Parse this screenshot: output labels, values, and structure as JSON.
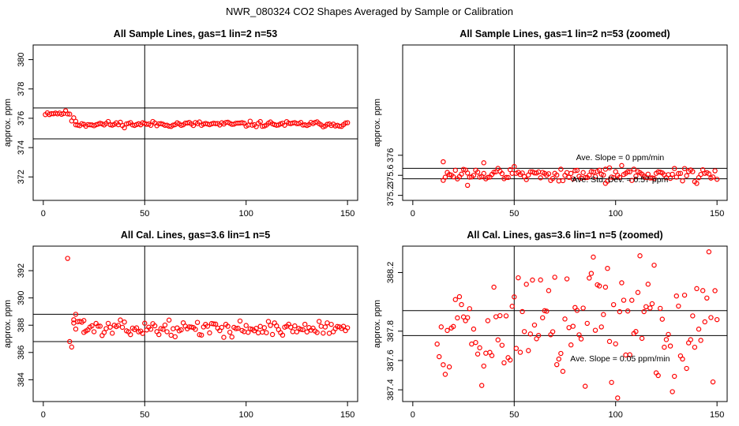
{
  "figure": {
    "title": "NWR_080324  CO2 Shapes Averaged by Sample or Calibration"
  },
  "chart_data": [
    {
      "type": "scatter",
      "title": "All Sample Lines, gas=1 lin=2 n=53",
      "xlabel": "",
      "ylabel": "approx. ppm",
      "xlim": [
        -5,
        155
      ],
      "ylim": [
        370.4,
        381.0
      ],
      "xticks": [
        0,
        50,
        100,
        150
      ],
      "yticks": [
        372,
        374,
        376,
        378,
        380
      ],
      "hlines": [
        376.7,
        374.6
      ],
      "vline": 50,
      "annotations": [],
      "series": [
        {
          "marker": "open-circle",
          "color": "#ff0000",
          "seed": 11,
          "segments": [
            {
              "from": 1,
              "to": 13,
              "center": 376.35,
              "noise": 0.08
            },
            {
              "from": 14,
              "to": 16,
              "center": 375.85,
              "noise": 0.1
            },
            {
              "from": 16,
              "to": 150,
              "center": 375.6,
              "noise": 0.09
            }
          ]
        }
      ]
    },
    {
      "type": "scatter",
      "title": "All Sample Lines, gas=1 lin=2 n=53 (zoomed)",
      "xlabel": "",
      "ylabel": "approx. ppm",
      "xlim": [
        -5,
        155
      ],
      "ylim": [
        375.1,
        378.2
      ],
      "xticks": [
        0,
        50,
        100,
        150
      ],
      "yticks": [
        375.2,
        375.6,
        376.0
      ],
      "hlines": [
        375.74,
        375.53
      ],
      "vline": 50,
      "annotations": [
        "Ave. Slope =  0  ppm/min",
        "Ave. Std. Dev. =  0.57  ppm"
      ],
      "series": [
        {
          "marker": "open-circle",
          "color": "#ff0000",
          "seed": 12,
          "segments": [
            {
              "from": 15,
              "to": 150,
              "center": 375.62,
              "noise": 0.07
            }
          ],
          "extra_points": [
            [
              15,
              375.87
            ],
            [
              27,
              375.4
            ],
            [
              35,
              375.85
            ],
            [
              95,
              375.44
            ]
          ]
        }
      ]
    },
    {
      "type": "scatter",
      "title": "All Cal. Lines, gas=3.6 lin=1 n=5",
      "xlabel": "",
      "ylabel": "approx. ppm",
      "xlim": [
        -5,
        155
      ],
      "ylim": [
        382.4,
        393.8
      ],
      "xticks": [
        0,
        50,
        100,
        150
      ],
      "yticks": [
        384,
        386,
        388,
        390,
        392
      ],
      "hlines": [
        388.8,
        386.8
      ],
      "vline": 50,
      "annotations": [],
      "series": [
        {
          "marker": "open-circle",
          "color": "#ff0000",
          "seed": 13,
          "segments": [
            {
              "from": 15,
              "to": 20,
              "center": 388.2,
              "noise": 0.25
            },
            {
              "from": 20,
              "to": 150,
              "center": 387.75,
              "noise": 0.25
            }
          ],
          "extra_points": [
            [
              12,
              392.9
            ],
            [
              13,
              386.8
            ],
            [
              14,
              386.4
            ],
            [
              15,
              388.4
            ],
            [
              16,
              388.8
            ]
          ]
        }
      ]
    },
    {
      "type": "scatter",
      "title": "All Cal. Lines, gas=3.6 lin=1 n=5 (zoomed)",
      "xlabel": "",
      "ylabel": "approx. ppm",
      "xlim": [
        -5,
        155
      ],
      "ylim": [
        387.32,
        388.38
      ],
      "xticks": [
        0,
        50,
        100,
        150
      ],
      "yticks": [
        387.4,
        387.6,
        387.8,
        388.2
      ],
      "hlines": [
        387.94,
        387.77
      ],
      "vline": 50,
      "annotations": [
        "Ave. Slope =  0.05  ppm/min"
      ],
      "series": [
        {
          "marker": "open-circle",
          "color": "#ff0000",
          "seed": 14,
          "segments": [
            {
              "from": 12,
              "to": 150,
              "center": 387.84,
              "noise": 0.21
            }
          ]
        }
      ]
    }
  ]
}
